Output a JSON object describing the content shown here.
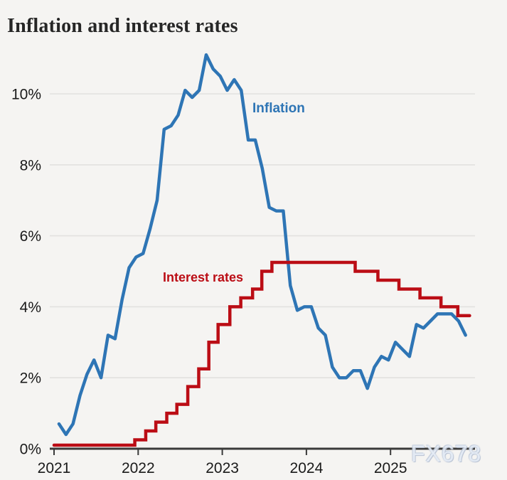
{
  "title": "Inflation and interest rates",
  "watermark": {
    "text": "FX678"
  },
  "colors": {
    "background": "#f5f4f2",
    "gridline": "#e2e1df",
    "axis": "#3a3a3a",
    "text": "#1a1a1a",
    "inflation_blue": "#2e75b5",
    "rates_red": "#bb0d15"
  },
  "chart_data": {
    "type": "line",
    "title": "Inflation and interest rates",
    "xlabel": "",
    "ylabel": "",
    "grid": "horizontal",
    "legend_position": "inline-annotations",
    "x_axis": {
      "tick_labels": [
        "2021",
        "2022",
        "2023",
        "2024",
        "2025"
      ],
      "tick_values": [
        2021,
        2022,
        2023,
        2024,
        2025
      ],
      "range": [
        2021.0,
        2026.0
      ]
    },
    "y_axis": {
      "tick_labels": [
        "0%",
        "2%",
        "4%",
        "6%",
        "8%",
        "10%"
      ],
      "tick_values": [
        0,
        2,
        4,
        6,
        8,
        10
      ],
      "unit": "%",
      "ylim": [
        0,
        11.3
      ]
    },
    "series": [
      {
        "name": "Inflation",
        "type": "line",
        "color": "#2e75b5",
        "x_start": "2021-01",
        "x_step": "monthly",
        "values": [
          0.7,
          0.4,
          0.7,
          1.5,
          2.1,
          2.5,
          2.0,
          3.2,
          3.1,
          4.2,
          5.1,
          5.4,
          5.5,
          6.2,
          7.0,
          9.0,
          9.1,
          9.4,
          10.1,
          9.9,
          10.1,
          11.1,
          10.7,
          10.5,
          10.1,
          10.4,
          10.1,
          8.7,
          8.7,
          7.9,
          6.8,
          6.7,
          6.7,
          4.6,
          3.9,
          4.0,
          4.0,
          3.4,
          3.2,
          2.3,
          2.0,
          2.0,
          2.2,
          2.2,
          1.7,
          2.3,
          2.6,
          2.5,
          3.0,
          2.8,
          2.6,
          3.5,
          3.4,
          3.6,
          3.8,
          3.8,
          3.8,
          3.6,
          3.2
        ]
      },
      {
        "name": "Interest rates",
        "type": "step",
        "color": "#bb0d15",
        "steps": [
          {
            "t": 2021.0,
            "v": 0.1
          },
          {
            "t": 2021.96,
            "v": 0.25
          },
          {
            "t": 2022.09,
            "v": 0.5
          },
          {
            "t": 2022.21,
            "v": 0.75
          },
          {
            "t": 2022.34,
            "v": 1.0
          },
          {
            "t": 2022.46,
            "v": 1.25
          },
          {
            "t": 2022.59,
            "v": 1.75
          },
          {
            "t": 2022.72,
            "v": 2.25
          },
          {
            "t": 2022.84,
            "v": 3.0
          },
          {
            "t": 2022.95,
            "v": 3.5
          },
          {
            "t": 2023.09,
            "v": 4.0
          },
          {
            "t": 2023.22,
            "v": 4.25
          },
          {
            "t": 2023.36,
            "v": 4.5
          },
          {
            "t": 2023.47,
            "v": 5.0
          },
          {
            "t": 2023.59,
            "v": 5.25
          },
          {
            "t": 2024.58,
            "v": 5.0
          },
          {
            "t": 2024.85,
            "v": 4.75
          },
          {
            "t": 2025.1,
            "v": 4.5
          },
          {
            "t": 2025.35,
            "v": 4.25
          },
          {
            "t": 2025.6,
            "v": 4.0
          },
          {
            "t": 2025.8,
            "v": 3.75
          }
        ],
        "end_t": 2025.94
      }
    ],
    "annotations": [
      {
        "text": "Inflation",
        "color": "#2e75b5"
      },
      {
        "text": "Interest rates",
        "color": "#bb0d15"
      }
    ]
  }
}
